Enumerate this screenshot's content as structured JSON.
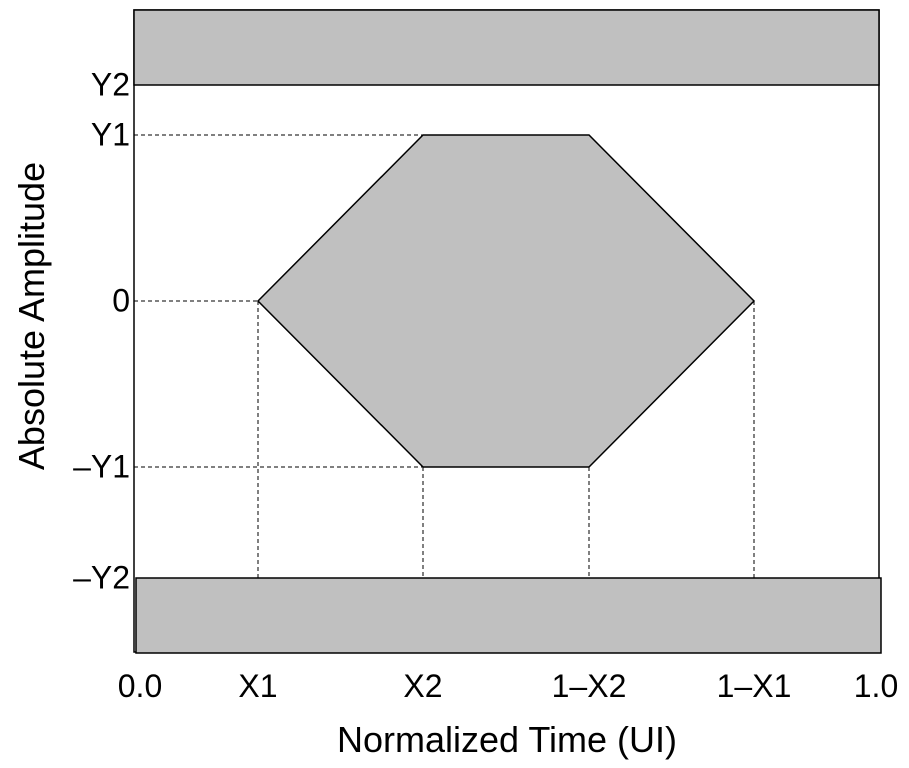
{
  "diagram": {
    "y_axis_label": "Absolute Amplitude",
    "x_axis_label": "Normalized Time (UI)",
    "y_ticks": {
      "y2": "Y2",
      "y1": "Y1",
      "zero": "0",
      "neg_y1": "–Y1",
      "neg_y2": "–Y2"
    },
    "x_ticks": {
      "x0": "0.0",
      "x1": "X1",
      "x2": "X2",
      "one_minus_x2": "1–X2",
      "one_minus_x1": "1–X1",
      "x_end": "1.0"
    },
    "colors": {
      "mask_fill": "#c0c0c0",
      "stroke": "#000000",
      "background": "#ffffff"
    }
  }
}
